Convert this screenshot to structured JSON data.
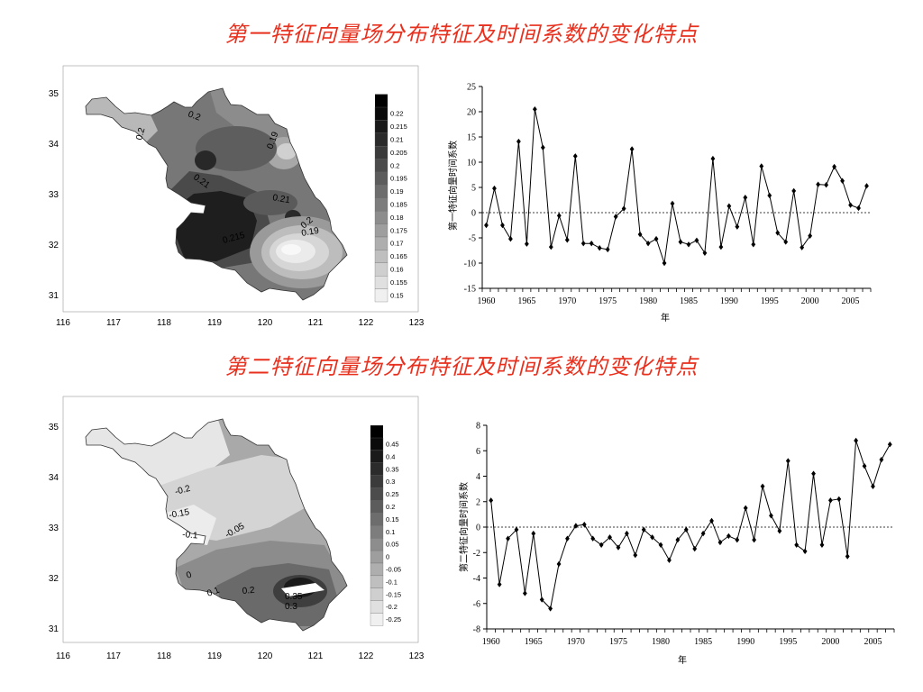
{
  "titles": {
    "eof1": "第一特征向量场分布特征及时间系数的变化特点",
    "eof2": "第二特征向量场分布特征及时间系数的变化特点"
  },
  "chart_data": [
    {
      "type": "heatmap",
      "map_x_ticks": [
        "116",
        "117",
        "118",
        "119",
        "120",
        "121",
        "122",
        "123"
      ],
      "map_y_ticks": [
        "35",
        "34",
        "33",
        "32",
        "31"
      ],
      "colorbar_levels": [
        "0.22",
        "0.215",
        "0.21",
        "0.205",
        "0.2",
        "0.195",
        "0.19",
        "0.185",
        "0.18",
        "0.175",
        "0.17",
        "0.165",
        "0.16",
        "0.155",
        "0.15"
      ],
      "contour_labels": [
        "0.2",
        "0.2",
        "0.19",
        "0.21",
        "0.21",
        "0.2",
        "0.19",
        "0.215"
      ]
    },
    {
      "type": "line",
      "ylabel": "第一特征向量时间系数",
      "xlabel": "年",
      "ylim": [
        -15,
        25
      ],
      "y_ticks": [
        "25",
        "20",
        "15",
        "10",
        "5",
        "0",
        "-5",
        "-10",
        "-15"
      ],
      "x_ticks": [
        "1960",
        "1965",
        "1970",
        "1975",
        "1980",
        "1985",
        "1990",
        "1995",
        "2000",
        "2005"
      ],
      "x": [
        1960,
        1961,
        1962,
        1963,
        1964,
        1965,
        1966,
        1967,
        1968,
        1969,
        1970,
        1971,
        1972,
        1973,
        1974,
        1975,
        1976,
        1977,
        1978,
        1979,
        1980,
        1981,
        1982,
        1983,
        1984,
        1985,
        1986,
        1987,
        1988,
        1989,
        1990,
        1991,
        1992,
        1993,
        1994,
        1995,
        1996,
        1997,
        1998,
        1999,
        2000,
        2001,
        2002,
        2003,
        2004,
        2005,
        2006,
        2007
      ],
      "values": [
        -2.5,
        4.8,
        -2.5,
        -5.2,
        14.1,
        -6.2,
        20.5,
        12.9,
        -6.8,
        -0.6,
        -5.4,
        11.2,
        -6.1,
        -6.1,
        -7.0,
        -7.3,
        -0.8,
        0.8,
        12.6,
        -4.3,
        -6.1,
        -5.2,
        -10.0,
        1.8,
        -5.8,
        -6.3,
        -5.5,
        -8.0,
        10.7,
        -6.8,
        1.3,
        -2.8,
        3.0,
        -6.3,
        9.2,
        3.4,
        -4.0,
        -5.8,
        4.3,
        -6.9,
        -4.6,
        5.6,
        5.5,
        9.1,
        6.3,
        1.5,
        0.9,
        5.3
      ]
    },
    {
      "type": "heatmap",
      "map_x_ticks": [
        "116",
        "117",
        "118",
        "119",
        "120",
        "121",
        "122",
        "123"
      ],
      "map_y_ticks": [
        "35",
        "34",
        "33",
        "32",
        "31"
      ],
      "colorbar_levels": [
        "0.45",
        "0.4",
        "0.35",
        "0.3",
        "0.25",
        "0.2",
        "0.15",
        "0.1",
        "0.05",
        "0",
        "-0.05",
        "-0.1",
        "-0.15",
        "-0.2",
        "-0.25"
      ],
      "contour_labels": [
        "-0.2",
        "-0.15",
        "-0.1",
        "-0.05",
        "0",
        "0.1",
        "0.2",
        "0.35",
        "0.3"
      ]
    },
    {
      "type": "line",
      "ylabel": "第二特征向量时间系数",
      "xlabel": "年",
      "ylim": [
        -8,
        8
      ],
      "y_ticks": [
        "8",
        "6",
        "4",
        "2",
        "0",
        "-2",
        "-4",
        "-6",
        "-8"
      ],
      "x_ticks": [
        "1960",
        "1965",
        "1970",
        "1975",
        "1980",
        "1985",
        "1990",
        "1995",
        "2000",
        "2005"
      ],
      "x": [
        1960,
        1961,
        1962,
        1963,
        1964,
        1965,
        1966,
        1967,
        1968,
        1969,
        1970,
        1971,
        1972,
        1973,
        1974,
        1975,
        1976,
        1977,
        1978,
        1979,
        1980,
        1981,
        1982,
        1983,
        1984,
        1985,
        1986,
        1987,
        1988,
        1989,
        1990,
        1991,
        1992,
        1993,
        1994,
        1995,
        1996,
        1997,
        1998,
        1999,
        2000,
        2001,
        2002,
        2003,
        2004,
        2005,
        2006,
        2007
      ],
      "values": [
        2.1,
        -4.5,
        -0.9,
        -0.2,
        -5.2,
        -0.5,
        -5.7,
        -6.4,
        -2.9,
        -0.9,
        0.1,
        0.2,
        -0.9,
        -1.4,
        -0.8,
        -1.6,
        -0.5,
        -2.2,
        -0.2,
        -0.8,
        -1.4,
        -2.6,
        -1.0,
        -0.2,
        -1.7,
        -0.5,
        0.5,
        -1.2,
        -0.7,
        -1.0,
        1.5,
        -1.0,
        3.2,
        0.9,
        -0.3,
        5.2,
        -1.4,
        -1.9,
        4.2,
        -1.4,
        2.1,
        2.2,
        -2.3,
        6.8,
        4.8,
        3.2,
        5.3,
        6.5
      ]
    }
  ]
}
